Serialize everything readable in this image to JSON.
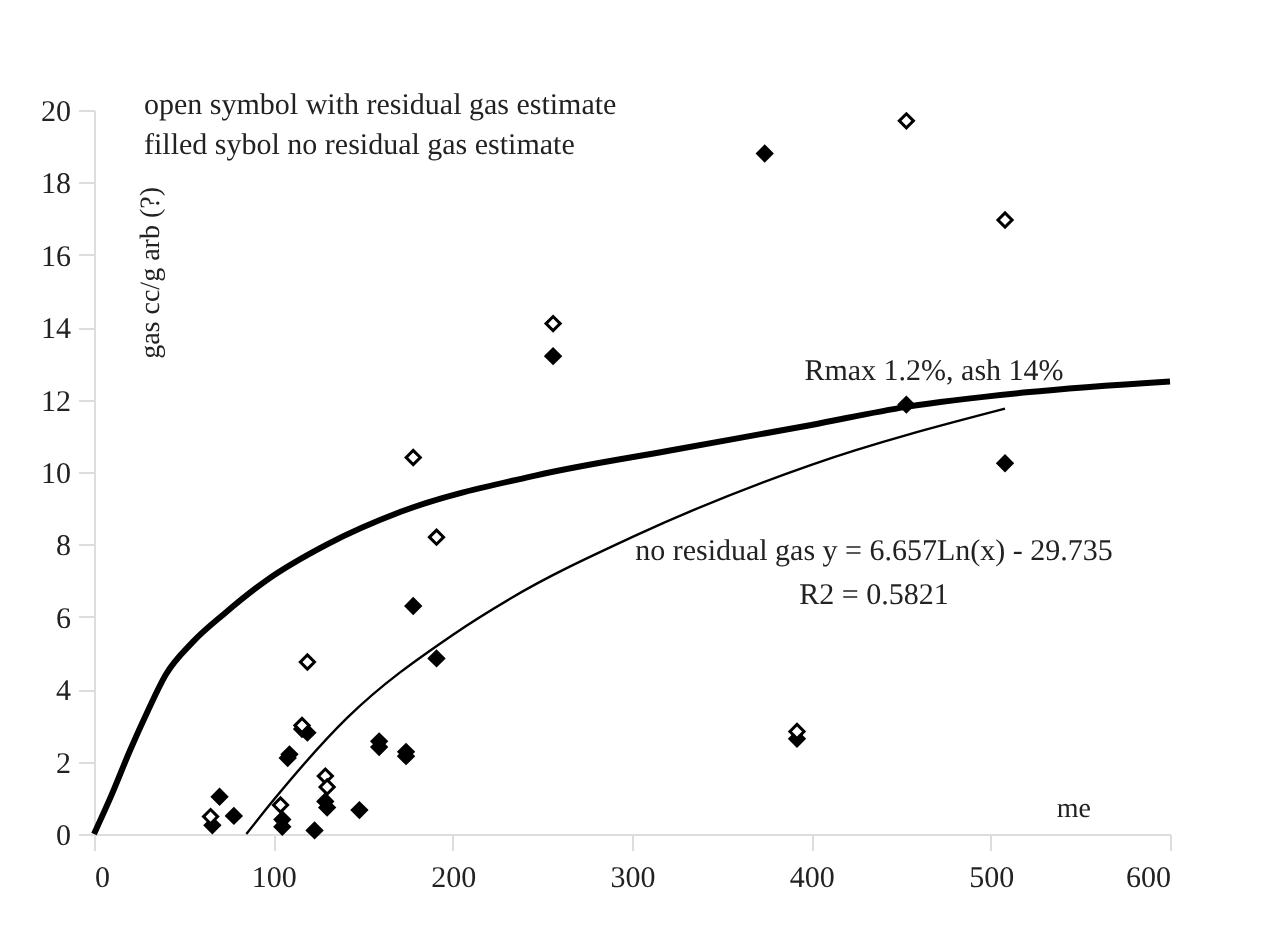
{
  "chart_data": {
    "type": "scatter",
    "xlabel": "me",
    "ylabel": "gas cc/g arb (?)",
    "xlim": [
      0,
      600
    ],
    "xticks": [
      0,
      100,
      200,
      300,
      400,
      500,
      600
    ],
    "ylim": [
      0,
      20
    ],
    "yticks": [
      0,
      2,
      4,
      6,
      8,
      10,
      12,
      14,
      16,
      18,
      20
    ],
    "grid": false,
    "annotations": [
      "open symbol with residual gas estimate",
      "filled sybol no residual gas estimate",
      "Rmax 1.2%, ash 14%",
      "no residual gas y = 6.657Ln(x) - 29.735",
      "R2 = 0.5821"
    ],
    "series": [
      {
        "color": "#000000",
        "marker": "diamond",
        "x": [
          66,
          70,
          78,
          108,
          109,
          105,
          105,
          116,
          119,
          123,
          129,
          130,
          148,
          159,
          159,
          174,
          174,
          178,
          191,
          256,
          374,
          453,
          508,
          392
        ],
        "values": [
          0.24,
          1.03,
          0.5,
          2.1,
          2.2,
          0.4,
          0.2,
          2.9,
          2.8,
          0.1,
          0.9,
          0.73,
          0.66,
          2.56,
          2.4,
          2.27,
          2.15,
          6.3,
          4.85,
          13.2,
          18.8,
          11.86,
          10.24,
          2.63
        ]
      },
      {
        "color": "#ffffff",
        "marker": "diamond",
        "x": [
          65,
          104,
          116,
          119,
          129,
          130,
          191,
          178,
          256,
          453,
          508,
          392
        ],
        "values": [
          0.48,
          0.8,
          3.0,
          4.75,
          1.6,
          1.3,
          8.2,
          10.4,
          14.1,
          19.7,
          16.96,
          2.83
        ]
      },
      {
        "type": "line",
        "color": "#000000",
        "x": [
          0,
          10,
          20,
          30,
          40,
          55,
          73,
          96,
          130,
          171,
          246,
          322,
          400,
          453,
          520,
          600
        ],
        "values": [
          0,
          1.1,
          2.3,
          3.4,
          4.4,
          5.3,
          6.1,
          7.0,
          8.0,
          8.9,
          9.9,
          10.6,
          11.3,
          11.8,
          12.2,
          12.5
        ]
      },
      {
        "type": "line",
        "color": "#000000",
        "x": [
          85,
          100,
          141,
          200,
          232,
          300,
          400,
          508
        ],
        "values": [
          0,
          0.93,
          3.2,
          5.5,
          6.5,
          8.2,
          10.2,
          11.75
        ]
      }
    ]
  }
}
